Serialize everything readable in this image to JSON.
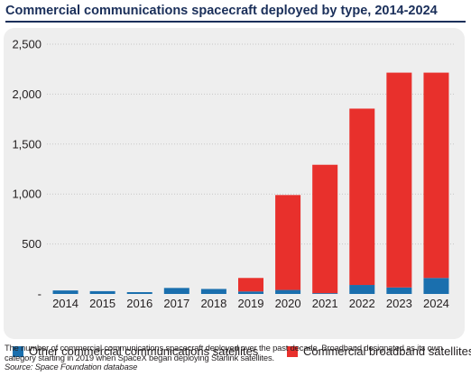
{
  "title": "Commercial communications spacecraft deployed by type, 2014-2024",
  "note": "The number of commercial communications spacecraft deployed over the past decade. Broadband designated as its own category starting in 2019 when SpaceX began deploying Starlink satellites.",
  "source": "Source: Space Foundation database",
  "colors": {
    "other": "#1a6fae",
    "broadband": "#e8302c",
    "title": "#1a2f5a",
    "panel": "#eeeeee"
  },
  "chart_data": {
    "type": "bar",
    "stacked": true,
    "title": "Commercial communications spacecraft deployed by type, 2014-2024",
    "xlabel": "",
    "ylabel": "",
    "ylim": [
      0,
      2500
    ],
    "yticks": [
      0,
      500,
      1000,
      1500,
      2000,
      2500
    ],
    "ytick_labels": [
      "-",
      "500",
      "1,000",
      "1,500",
      "2,000",
      "2,500"
    ],
    "grid": true,
    "legend_position": "bottom",
    "categories": [
      "2014",
      "2015",
      "2016",
      "2017",
      "2018",
      "2019",
      "2020",
      "2021",
      "2022",
      "2023",
      "2024"
    ],
    "series": [
      {
        "name": "Other commercial communications satellites",
        "color": "#1a6fae",
        "values": [
          35,
          28,
          18,
          60,
          50,
          25,
          40,
          8,
          90,
          65,
          160
        ]
      },
      {
        "name": "Commercial broadband satellites",
        "color": "#e8302c",
        "values": [
          0,
          0,
          0,
          0,
          0,
          135,
          950,
          1285,
          1765,
          2150,
          2055
        ]
      }
    ]
  }
}
